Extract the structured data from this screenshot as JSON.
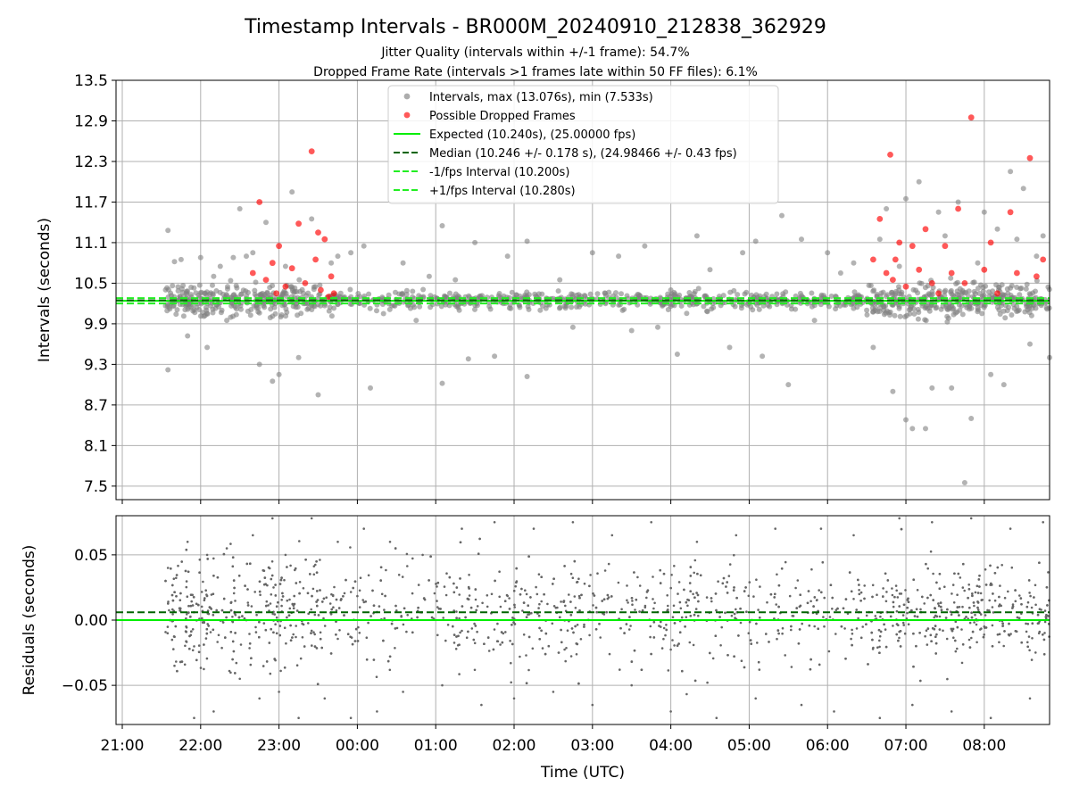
{
  "figure": {
    "title": "Timestamp Intervals - BR000M_20240910_212838_362929",
    "subtitle_1": "Jitter Quality (intervals within +/-1 frame): 54.7%",
    "subtitle_2": "Dropped Frame Rate (intervals >1 frames late within 50 FF files): 6.1%"
  },
  "colors": {
    "intervals": "#808080",
    "dropped": "#ff0000",
    "expected": "#00ee00",
    "median": "#006400",
    "bounds": "#22ee22",
    "grid": "#b0b0b0"
  },
  "chart_data": [
    {
      "type": "scatter",
      "ylabel": "Intervals (seconds)",
      "xlim": [
        "21:00",
        "08:50"
      ],
      "ylim": [
        7.3,
        13.5
      ],
      "yticks": [
        "7.5",
        "8.1",
        "8.7",
        "9.3",
        "9.9",
        "10.5",
        "11.1",
        "11.7",
        "12.3",
        "12.9",
        "13.5"
      ],
      "grid": true,
      "legend_placement": "upper center",
      "legend": [
        {
          "label": "Intervals, max (13.076s), min (7.533s)",
          "kind": "marker",
          "color": "#808080"
        },
        {
          "label": "Possible Dropped Frames",
          "kind": "marker",
          "color": "#ff0000"
        },
        {
          "label": "Expected (10.240s), (25.00000 fps)",
          "kind": "solid",
          "color": "#00ee00"
        },
        {
          "label": "Median (10.246 +/- 0.178 s), (24.98466 +/- 0.43 fps)",
          "kind": "dashed",
          "color": "#006400"
        },
        {
          "label": "-1/fps Interval (10.200s)",
          "kind": "dashed",
          "color": "#22ee22"
        },
        {
          "label": "+1/fps Interval (10.280s)",
          "kind": "dashed",
          "color": "#22ee22"
        }
      ],
      "reference_lines": {
        "expected": 10.24,
        "median": 10.246,
        "minus_1fps": 10.2,
        "plus_1fps": 10.28
      },
      "series": [
        {
          "name": "Intervals",
          "points": [
            [
              "21:35",
              11.28
            ],
            [
              "21:35",
              9.22
            ],
            [
              "21:40",
              10.82
            ],
            [
              "21:45",
              10.85
            ],
            [
              "21:50",
              9.72
            ],
            [
              "22:00",
              10.88
            ],
            [
              "22:05",
              9.55
            ],
            [
              "22:10",
              10.6
            ],
            [
              "22:15",
              10.75
            ],
            [
              "22:20",
              9.95
            ],
            [
              "22:25",
              10.88
            ],
            [
              "22:30",
              11.6
            ],
            [
              "22:35",
              10.9
            ],
            [
              "22:40",
              10.95
            ],
            [
              "22:45",
              9.3
            ],
            [
              "22:50",
              11.4
            ],
            [
              "22:55",
              9.05
            ],
            [
              "23:00",
              9.15
            ],
            [
              "23:05",
              10.75
            ],
            [
              "23:10",
              11.85
            ],
            [
              "23:15",
              9.4
            ],
            [
              "23:20",
              10.2
            ],
            [
              "23:25",
              11.45
            ],
            [
              "23:30",
              8.85
            ],
            [
              "23:40",
              10.8
            ],
            [
              "23:45",
              10.9
            ],
            [
              "23:55",
              10.95
            ],
            [
              "00:05",
              11.05
            ],
            [
              "00:10",
              8.95
            ],
            [
              "00:20",
              10.05
            ],
            [
              "00:35",
              10.8
            ],
            [
              "00:45",
              9.95
            ],
            [
              "00:55",
              10.6
            ],
            [
              "01:05",
              11.35
            ],
            [
              "01:05",
              9.02
            ],
            [
              "01:15",
              10.55
            ],
            [
              "01:25",
              9.38
            ],
            [
              "01:30",
              11.1
            ],
            [
              "01:45",
              9.42
            ],
            [
              "01:55",
              10.9
            ],
            [
              "02:10",
              11.12
            ],
            [
              "02:10",
              9.12
            ],
            [
              "02:20",
              10.1
            ],
            [
              "02:35",
              10.55
            ],
            [
              "02:45",
              9.85
            ],
            [
              "03:00",
              10.95
            ],
            [
              "03:10",
              10.2
            ],
            [
              "03:20",
              10.9
            ],
            [
              "03:30",
              9.8
            ],
            [
              "03:40",
              11.05
            ],
            [
              "03:50",
              9.85
            ],
            [
              "04:00",
              10.4
            ],
            [
              "04:05",
              9.45
            ],
            [
              "04:15",
              10.3
            ],
            [
              "04:20",
              11.2
            ],
            [
              "04:30",
              10.7
            ],
            [
              "04:45",
              9.55
            ],
            [
              "04:55",
              10.95
            ],
            [
              "05:05",
              11.12
            ],
            [
              "05:10",
              9.42
            ],
            [
              "05:25",
              11.5
            ],
            [
              "05:30",
              9.0
            ],
            [
              "05:40",
              11.15
            ],
            [
              "05:50",
              9.95
            ],
            [
              "06:00",
              10.95
            ],
            [
              "06:10",
              10.65
            ],
            [
              "06:20",
              10.8
            ],
            [
              "06:30",
              10.1
            ],
            [
              "06:35",
              9.55
            ],
            [
              "06:40",
              11.15
            ],
            [
              "06:45",
              11.6
            ],
            [
              "06:50",
              8.9
            ],
            [
              "06:55",
              10.75
            ],
            [
              "07:00",
              11.75
            ],
            [
              "07:00",
              8.48
            ],
            [
              "07:05",
              8.35
            ],
            [
              "07:10",
              12.0
            ],
            [
              "07:15",
              8.35
            ],
            [
              "07:20",
              8.95
            ],
            [
              "07:25",
              11.55
            ],
            [
              "07:30",
              11.2
            ],
            [
              "07:35",
              8.95
            ],
            [
              "07:40",
              11.7
            ],
            [
              "07:45",
              7.55
            ],
            [
              "07:50",
              8.5
            ],
            [
              "07:55",
              10.8
            ],
            [
              "08:00",
              11.55
            ],
            [
              "08:05",
              9.15
            ],
            [
              "08:10",
              11.3
            ],
            [
              "08:15",
              9.0
            ],
            [
              "08:20",
              12.15
            ],
            [
              "08:25",
              11.15
            ],
            [
              "08:30",
              11.9
            ],
            [
              "08:35",
              9.6
            ],
            [
              "08:40",
              10.9
            ],
            [
              "08:45",
              11.2
            ],
            [
              "08:50",
              9.4
            ]
          ]
        },
        {
          "name": "Possible Dropped Frames",
          "points": [
            [
              "22:40",
              10.65
            ],
            [
              "22:45",
              11.7
            ],
            [
              "22:50",
              10.55
            ],
            [
              "22:55",
              10.8
            ],
            [
              "22:58",
              10.35
            ],
            [
              "23:00",
              11.05
            ],
            [
              "23:05",
              10.45
            ],
            [
              "23:10",
              10.72
            ],
            [
              "23:15",
              11.38
            ],
            [
              "23:20",
              10.5
            ],
            [
              "23:25",
              12.45
            ],
            [
              "23:28",
              10.85
            ],
            [
              "23:30",
              11.25
            ],
            [
              "23:32",
              10.4
            ],
            [
              "23:35",
              11.15
            ],
            [
              "23:38",
              10.3
            ],
            [
              "23:40",
              10.6
            ],
            [
              "23:42",
              10.35
            ],
            [
              "06:35",
              10.85
            ],
            [
              "06:40",
              11.45
            ],
            [
              "06:45",
              10.65
            ],
            [
              "06:48",
              12.4
            ],
            [
              "06:50",
              10.55
            ],
            [
              "06:52",
              10.85
            ],
            [
              "06:55",
              11.1
            ],
            [
              "07:00",
              10.45
            ],
            [
              "07:05",
              11.05
            ],
            [
              "07:10",
              10.7
            ],
            [
              "07:15",
              11.3
            ],
            [
              "07:20",
              10.5
            ],
            [
              "07:25",
              10.35
            ],
            [
              "07:30",
              11.05
            ],
            [
              "07:35",
              10.65
            ],
            [
              "07:40",
              11.6
            ],
            [
              "07:45",
              10.5
            ],
            [
              "07:50",
              12.95
            ],
            [
              "08:00",
              10.7
            ],
            [
              "08:05",
              11.1
            ],
            [
              "08:10",
              10.35
            ],
            [
              "08:20",
              11.55
            ],
            [
              "08:25",
              10.65
            ],
            [
              "08:35",
              12.35
            ],
            [
              "08:40",
              10.6
            ],
            [
              "08:45",
              10.85
            ]
          ]
        }
      ]
    },
    {
      "type": "scatter",
      "xlabel": "Time (UTC)",
      "ylabel": "Residuals (seconds)",
      "xlim": [
        "21:00",
        "08:50"
      ],
      "ylim": [
        -0.08,
        0.08
      ],
      "yticks": [
        "−0.05",
        "0.00",
        "0.05"
      ],
      "xticks": [
        "21:00",
        "22:00",
        "23:00",
        "00:00",
        "01:00",
        "02:00",
        "03:00",
        "04:00",
        "05:00",
        "06:00",
        "07:00",
        "08:00"
      ],
      "grid": true,
      "reference_lines": {
        "zero": 0.0,
        "median_offset": 0.006
      },
      "series": [
        {
          "name": "Residuals",
          "points": [
            [
              "21:35",
              0.04
            ],
            [
              "21:40",
              -0.035
            ],
            [
              "21:50",
              0.06
            ],
            [
              "21:55",
              -0.075
            ],
            [
              "22:05",
              0.05
            ],
            [
              "22:10",
              -0.07
            ],
            [
              "22:20",
              0.055
            ],
            [
              "22:30",
              -0.045
            ],
            [
              "22:40",
              0.065
            ],
            [
              "22:45",
              -0.06
            ],
            [
              "22:55",
              0.078
            ],
            [
              "23:00",
              -0.055
            ],
            [
              "23:05",
              0.05
            ],
            [
              "23:15",
              -0.075
            ],
            [
              "23:25",
              0.078
            ],
            [
              "23:35",
              -0.06
            ],
            [
              "23:45",
              0.06
            ],
            [
              "23:55",
              -0.075
            ],
            [
              "00:05",
              0.07
            ],
            [
              "00:15",
              -0.07
            ],
            [
              "00:25",
              0.06
            ],
            [
              "00:35",
              -0.055
            ],
            [
              "00:50",
              0.05
            ],
            [
              "01:05",
              -0.05
            ],
            [
              "01:20",
              0.07
            ],
            [
              "01:35",
              -0.065
            ],
            [
              "01:45",
              0.075
            ],
            [
              "02:00",
              -0.06
            ],
            [
              "02:15",
              0.07
            ],
            [
              "02:30",
              -0.055
            ],
            [
              "02:45",
              0.075
            ],
            [
              "03:00",
              -0.065
            ],
            [
              "03:15",
              0.065
            ],
            [
              "03:30",
              -0.05
            ],
            [
              "03:45",
              0.075
            ],
            [
              "04:00",
              -0.07
            ],
            [
              "04:20",
              0.06
            ],
            [
              "04:35",
              -0.075
            ],
            [
              "04:50",
              0.065
            ],
            [
              "05:05",
              -0.06
            ],
            [
              "05:20",
              0.07
            ],
            [
              "05:40",
              -0.065
            ],
            [
              "05:55",
              0.07
            ],
            [
              "06:05",
              -0.07
            ],
            [
              "06:20",
              0.065
            ],
            [
              "06:40",
              -0.075
            ],
            [
              "06:55",
              0.078
            ],
            [
              "07:05",
              -0.065
            ],
            [
              "07:20",
              0.075
            ],
            [
              "07:35",
              -0.07
            ],
            [
              "07:50",
              0.078
            ],
            [
              "08:05",
              -0.075
            ],
            [
              "08:20",
              0.07
            ],
            [
              "08:35",
              -0.06
            ],
            [
              "08:45",
              0.075
            ]
          ]
        }
      ]
    }
  ]
}
